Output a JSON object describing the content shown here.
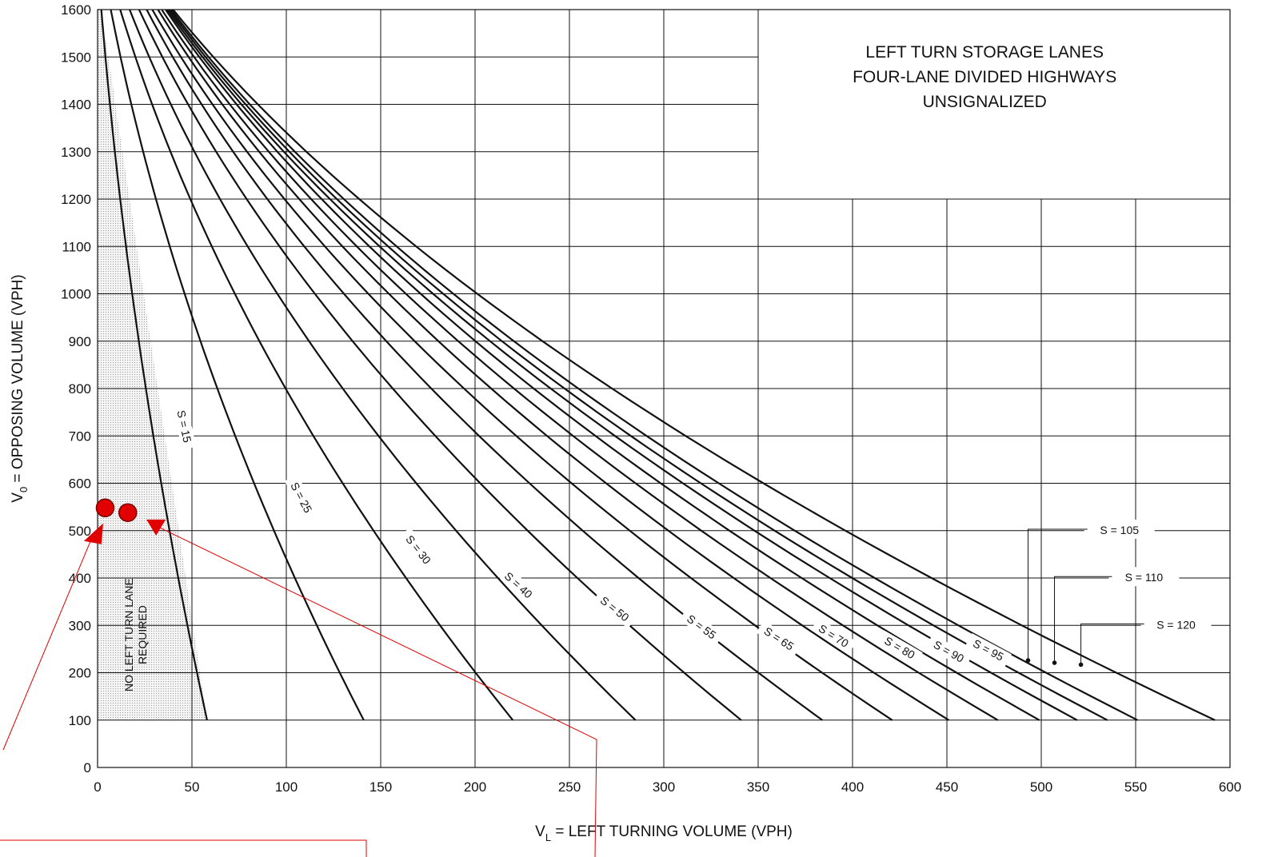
{
  "chart_data": {
    "type": "line",
    "title": [
      "LEFT TURN STORAGE LANES",
      "FOUR-LANE DIVIDED HIGHWAYS",
      "UNSIGNALIZED"
    ],
    "xlabel": {
      "main": "V",
      "sub": "L",
      "rest": " = LEFT TURNING VOLUME (VPH)"
    },
    "ylabel": {
      "main": "V",
      "sub": "0",
      "rest": " = OPPOSING VOLUME (VPH)"
    },
    "xlim": [
      0,
      600
    ],
    "ylim": [
      0,
      1600
    ],
    "xticks": [
      "0",
      "50",
      "100",
      "150",
      "200",
      "250",
      "300",
      "350",
      "400",
      "450",
      "500",
      "550",
      "600"
    ],
    "yticks": [
      "0",
      "100",
      "200",
      "300",
      "400",
      "500",
      "600",
      "700",
      "800",
      "900",
      "1000",
      "1100",
      "1200",
      "1300",
      "1400",
      "1500",
      "1600"
    ],
    "grid": true,
    "zone": {
      "label_lines": [
        "NO LEFT TURN LANE",
        "REQUIRED"
      ],
      "x_top": 0,
      "x_bottom": 58,
      "y_bottom": 100
    },
    "series": [
      {
        "name": "S = 15",
        "top_x": 2,
        "bottom_x": 58
      },
      {
        "name": "S = 25",
        "top_x": 7,
        "bottom_x": 141
      },
      {
        "name": "S = 30",
        "top_x": 12,
        "bottom_x": 220
      },
      {
        "name": "S = 40",
        "top_x": 17,
        "bottom_x": 285
      },
      {
        "name": "S = 50",
        "top_x": 22,
        "bottom_x": 341
      },
      {
        "name": "S = 55",
        "top_x": 26,
        "bottom_x": 384
      },
      {
        "name": "S = 65",
        "top_x": 29,
        "bottom_x": 421
      },
      {
        "name": "S = 70",
        "top_x": 32,
        "bottom_x": 451
      },
      {
        "name": "S = 80",
        "top_x": 34,
        "bottom_x": 477
      },
      {
        "name": "S = 90",
        "top_x": 36,
        "bottom_x": 499
      },
      {
        "name": "S = 95",
        "top_x": 37,
        "bottom_x": 519
      },
      {
        "name": "S = 105",
        "top_x": 38,
        "bottom_x": 535
      },
      {
        "name": "S = 110",
        "top_x": 39,
        "bottom_x": 551
      },
      {
        "name": "S = 120",
        "top_x": 40,
        "bottom_x": 592
      }
    ],
    "curve_labels": [
      {
        "text": "S = 15",
        "x": 46,
        "y": 720,
        "angle": 78
      },
      {
        "text": "S = 25",
        "x": 108,
        "y": 570,
        "angle": 62
      },
      {
        "text": "S = 30",
        "x": 170,
        "y": 460,
        "angle": 52
      },
      {
        "text": "S = 40",
        "x": 223,
        "y": 385,
        "angle": 42
      },
      {
        "text": "S = 50",
        "x": 274,
        "y": 335,
        "angle": 38
      },
      {
        "text": "S = 55",
        "x": 320,
        "y": 297,
        "angle": 36
      },
      {
        "text": "S = 65",
        "x": 361,
        "y": 272,
        "angle": 33
      },
      {
        "text": "S = 70",
        "x": 390,
        "y": 278,
        "angle": 32
      },
      {
        "text": "S = 80",
        "x": 425,
        "y": 253,
        "angle": 30
      },
      {
        "text": "S = 90",
        "x": 451,
        "y": 245,
        "angle": 29
      },
      {
        "text": "S = 95",
        "x": 472,
        "y": 248,
        "angle": 28
      }
    ],
    "leader_labels": [
      {
        "text": "S = 105",
        "label_x": 527,
        "label_y": 503,
        "dot_x": 493,
        "dot_y": 226
      },
      {
        "text": "S = 110",
        "label_x": 540,
        "label_y": 403,
        "dot_x": 507,
        "dot_y": 221
      },
      {
        "text": "S = 120",
        "label_x": 557,
        "label_y": 303,
        "dot_x": 521,
        "dot_y": 217
      }
    ],
    "markers": [
      {
        "shape": "circle",
        "x": 4,
        "y": 548
      },
      {
        "shape": "circle",
        "x": 16,
        "y": 538
      },
      {
        "shape": "triangle",
        "x": -3,
        "y": 495
      },
      {
        "shape": "triangle",
        "x": 31,
        "y": 510
      }
    ],
    "colors": {
      "curve": "#111111",
      "grid": "#111111",
      "marker": "#e00000",
      "annotation": "#e00000",
      "zone": "#e9e9e9"
    }
  }
}
